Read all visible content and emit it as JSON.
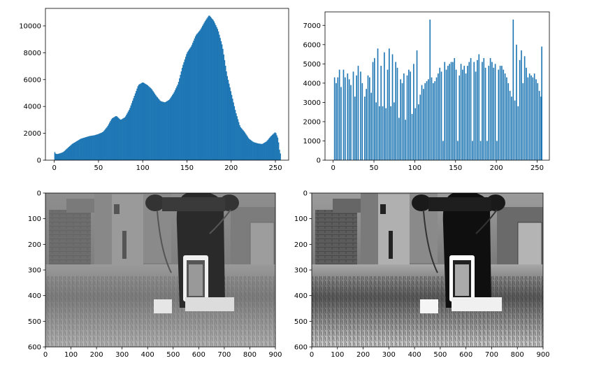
{
  "colors": {
    "bar": "#1f77b4",
    "axis": "#000000",
    "background": "#ffffff"
  },
  "chart_data": [
    {
      "type": "bar",
      "name": "histogram-original",
      "xlim": [
        -10,
        265
      ],
      "ylim": [
        0,
        11300
      ],
      "xticks": [
        0,
        50,
        100,
        150,
        200,
        250
      ],
      "yticks": [
        0,
        2000,
        4000,
        6000,
        8000,
        10000
      ],
      "xtick_labels": [
        "0",
        "50",
        "100",
        "150",
        "200",
        "250"
      ],
      "ytick_labels": [
        "0",
        "2000",
        "4000",
        "6000",
        "8000",
        "10000"
      ],
      "control_points": [
        [
          0,
          700
        ],
        [
          1,
          500
        ],
        [
          3,
          450
        ],
        [
          6,
          500
        ],
        [
          10,
          600
        ],
        [
          15,
          900
        ],
        [
          20,
          1200
        ],
        [
          25,
          1400
        ],
        [
          30,
          1600
        ],
        [
          35,
          1700
        ],
        [
          40,
          1800
        ],
        [
          45,
          1850
        ],
        [
          50,
          1950
        ],
        [
          55,
          2100
        ],
        [
          60,
          2500
        ],
        [
          65,
          3100
        ],
        [
          70,
          3300
        ],
        [
          75,
          3000
        ],
        [
          80,
          3200
        ],
        [
          85,
          3800
        ],
        [
          90,
          4700
        ],
        [
          95,
          5600
        ],
        [
          100,
          5800
        ],
        [
          105,
          5600
        ],
        [
          110,
          5300
        ],
        [
          115,
          4800
        ],
        [
          120,
          4400
        ],
        [
          125,
          4300
        ],
        [
          130,
          4500
        ],
        [
          135,
          5000
        ],
        [
          140,
          5700
        ],
        [
          145,
          7000
        ],
        [
          150,
          8000
        ],
        [
          155,
          8500
        ],
        [
          160,
          9300
        ],
        [
          165,
          9700
        ],
        [
          170,
          10300
        ],
        [
          175,
          10800
        ],
        [
          180,
          10400
        ],
        [
          185,
          9700
        ],
        [
          190,
          8500
        ],
        [
          195,
          6400
        ],
        [
          200,
          5000
        ],
        [
          205,
          3600
        ],
        [
          210,
          2500
        ],
        [
          215,
          2100
        ],
        [
          220,
          1600
        ],
        [
          225,
          1350
        ],
        [
          230,
          1250
        ],
        [
          235,
          1200
        ],
        [
          240,
          1400
        ],
        [
          245,
          1800
        ],
        [
          250,
          2100
        ],
        [
          253,
          1600
        ],
        [
          255,
          500
        ]
      ]
    },
    {
      "type": "bar",
      "name": "histogram-equalized",
      "xlim": [
        -10,
        265
      ],
      "ylim": [
        0,
        7700
      ],
      "xticks": [
        0,
        50,
        100,
        150,
        200,
        250
      ],
      "yticks": [
        0,
        1000,
        2000,
        3000,
        4000,
        5000,
        6000,
        7000
      ],
      "xtick_labels": [
        "0",
        "50",
        "100",
        "150",
        "200",
        "250"
      ],
      "ytick_labels": [
        "0",
        "1000",
        "2000",
        "3000",
        "4000",
        "5000",
        "6000",
        "7000"
      ],
      "bars": [
        {
          "x": 1,
          "v": 4300
        },
        {
          "x": 3,
          "v": 4000
        },
        {
          "x": 5,
          "v": 4300
        },
        {
          "x": 7,
          "v": 4700
        },
        {
          "x": 9,
          "v": 3800
        },
        {
          "x": 12,
          "v": 4700
        },
        {
          "x": 14,
          "v": 4300
        },
        {
          "x": 17,
          "v": 4500
        },
        {
          "x": 19,
          "v": 4200
        },
        {
          "x": 21,
          "v": 3900
        },
        {
          "x": 24,
          "v": 4600
        },
        {
          "x": 26,
          "v": 3300
        },
        {
          "x": 28,
          "v": 4400
        },
        {
          "x": 30,
          "v": 4900
        },
        {
          "x": 33,
          "v": 4600
        },
        {
          "x": 35,
          "v": 4000
        },
        {
          "x": 38,
          "v": 3300
        },
        {
          "x": 40,
          "v": 3700
        },
        {
          "x": 42,
          "v": 4400
        },
        {
          "x": 44,
          "v": 4300
        },
        {
          "x": 46,
          "v": 3500
        },
        {
          "x": 48,
          "v": 5100
        },
        {
          "x": 50,
          "v": 5300
        },
        {
          "x": 52,
          "v": 3000
        },
        {
          "x": 54,
          "v": 5800
        },
        {
          "x": 56,
          "v": 2800
        },
        {
          "x": 58,
          "v": 4900
        },
        {
          "x": 60,
          "v": 2800
        },
        {
          "x": 62,
          "v": 5600
        },
        {
          "x": 64,
          "v": 2700
        },
        {
          "x": 66,
          "v": 4700
        },
        {
          "x": 68,
          "v": 5800
        },
        {
          "x": 70,
          "v": 2800
        },
        {
          "x": 72,
          "v": 5500
        },
        {
          "x": 74,
          "v": 3000
        },
        {
          "x": 76,
          "v": 5100
        },
        {
          "x": 78,
          "v": 4800
        },
        {
          "x": 80,
          "v": 2200
        },
        {
          "x": 82,
          "v": 4200
        },
        {
          "x": 84,
          "v": 4000
        },
        {
          "x": 86,
          "v": 4500
        },
        {
          "x": 88,
          "v": 2100
        },
        {
          "x": 90,
          "v": 4400
        },
        {
          "x": 92,
          "v": 4700
        },
        {
          "x": 94,
          "v": 4600
        },
        {
          "x": 96,
          "v": 2400
        },
        {
          "x": 98,
          "v": 5000
        },
        {
          "x": 100,
          "v": 2700
        },
        {
          "x": 102,
          "v": 5700
        },
        {
          "x": 104,
          "v": 2900
        },
        {
          "x": 106,
          "v": 3400
        },
        {
          "x": 108,
          "v": 3900
        },
        {
          "x": 110,
          "v": 3700
        },
        {
          "x": 112,
          "v": 4000
        },
        {
          "x": 114,
          "v": 4100
        },
        {
          "x": 116,
          "v": 4200
        },
        {
          "x": 118,
          "v": 7300
        },
        {
          "x": 120,
          "v": 4300
        },
        {
          "x": 122,
          "v": 4000
        },
        {
          "x": 124,
          "v": 4100
        },
        {
          "x": 126,
          "v": 4300
        },
        {
          "x": 128,
          "v": 4500
        },
        {
          "x": 130,
          "v": 4800
        },
        {
          "x": 132,
          "v": 4600
        },
        {
          "x": 134,
          "v": 1000
        },
        {
          "x": 136,
          "v": 5100
        },
        {
          "x": 138,
          "v": 4700
        },
        {
          "x": 140,
          "v": 4900
        },
        {
          "x": 142,
          "v": 5000
        },
        {
          "x": 144,
          "v": 5100
        },
        {
          "x": 146,
          "v": 5100
        },
        {
          "x": 148,
          "v": 5300
        },
        {
          "x": 150,
          "v": 4700
        },
        {
          "x": 152,
          "v": 1000
        },
        {
          "x": 154,
          "v": 4400
        },
        {
          "x": 156,
          "v": 5000
        },
        {
          "x": 158,
          "v": 4700
        },
        {
          "x": 160,
          "v": 4900
        },
        {
          "x": 162,
          "v": 4500
        },
        {
          "x": 164,
          "v": 4900
        },
        {
          "x": 166,
          "v": 5100
        },
        {
          "x": 168,
          "v": 5300
        },
        {
          "x": 170,
          "v": 1000
        },
        {
          "x": 172,
          "v": 5100
        },
        {
          "x": 174,
          "v": 4600
        },
        {
          "x": 176,
          "v": 5200
        },
        {
          "x": 178,
          "v": 5500
        },
        {
          "x": 180,
          "v": 1000
        },
        {
          "x": 182,
          "v": 5100
        },
        {
          "x": 184,
          "v": 5300
        },
        {
          "x": 186,
          "v": 4800
        },
        {
          "x": 188,
          "v": 1000
        },
        {
          "x": 190,
          "v": 4900
        },
        {
          "x": 192,
          "v": 5300
        },
        {
          "x": 194,
          "v": 5100
        },
        {
          "x": 196,
          "v": 4800
        },
        {
          "x": 198,
          "v": 5000
        },
        {
          "x": 200,
          "v": 1000
        },
        {
          "x": 202,
          "v": 4700
        },
        {
          "x": 204,
          "v": 4900
        },
        {
          "x": 206,
          "v": 4900
        },
        {
          "x": 208,
          "v": 4700
        },
        {
          "x": 210,
          "v": 4500
        },
        {
          "x": 212,
          "v": 4300
        },
        {
          "x": 214,
          "v": 4000
        },
        {
          "x": 216,
          "v": 3600
        },
        {
          "x": 218,
          "v": 3300
        },
        {
          "x": 220,
          "v": 7300
        },
        {
          "x": 222,
          "v": 3100
        },
        {
          "x": 224,
          "v": 6000
        },
        {
          "x": 226,
          "v": 2800
        },
        {
          "x": 228,
          "v": 5200
        },
        {
          "x": 230,
          "v": 5700
        },
        {
          "x": 232,
          "v": 4000
        },
        {
          "x": 234,
          "v": 5400
        },
        {
          "x": 236,
          "v": 4800
        },
        {
          "x": 238,
          "v": 4300
        },
        {
          "x": 240,
          "v": 4500
        },
        {
          "x": 242,
          "v": 4400
        },
        {
          "x": 244,
          "v": 4300
        },
        {
          "x": 246,
          "v": 4500
        },
        {
          "x": 248,
          "v": 4200
        },
        {
          "x": 250,
          "v": 4000
        },
        {
          "x": 252,
          "v": 3600
        },
        {
          "x": 254,
          "v": 3300
        },
        {
          "x": 255,
          "v": 5900
        }
      ]
    },
    {
      "type": "image",
      "name": "image-original",
      "xlim": [
        0,
        900
      ],
      "ylim": [
        600,
        0
      ],
      "xticks": [
        0,
        100,
        200,
        300,
        400,
        500,
        600,
        700,
        800,
        900
      ],
      "yticks": [
        0,
        100,
        200,
        300,
        400,
        500,
        600
      ],
      "xtick_labels": [
        "0",
        "100",
        "200",
        "300",
        "400",
        "500",
        "600",
        "700",
        "800",
        "900"
      ],
      "ytick_labels": [
        "0",
        "100",
        "200",
        "300",
        "400",
        "500",
        "600"
      ]
    },
    {
      "type": "image",
      "name": "image-equalized",
      "xlim": [
        0,
        900
      ],
      "ylim": [
        600,
        0
      ],
      "xticks": [
        0,
        100,
        200,
        300,
        400,
        500,
        600,
        700,
        800,
        900
      ],
      "yticks": [
        0,
        100,
        200,
        300,
        400,
        500,
        600
      ],
      "xtick_labels": [
        "0",
        "100",
        "200",
        "300",
        "400",
        "500",
        "600",
        "700",
        "800",
        "900"
      ],
      "ytick_labels": [
        "0",
        "100",
        "200",
        "300",
        "400",
        "500",
        "600"
      ]
    }
  ]
}
